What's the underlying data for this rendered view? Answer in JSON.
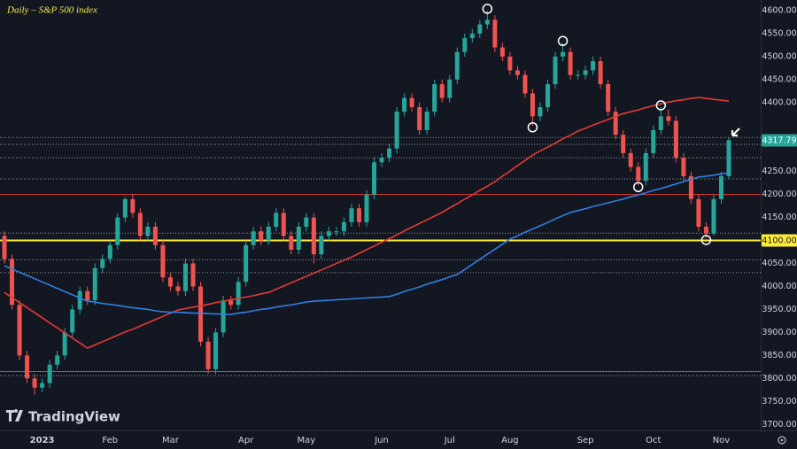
{
  "chart_data": {
    "type": "candlestick",
    "title": "Daily – S&P 500 index",
    "watermark": "TradingView",
    "categories": [
      null,
      null,
      null,
      null,
      null,
      "2023",
      null,
      null,
      null,
      null,
      null,
      null,
      null,
      null,
      "Feb",
      null,
      null,
      null,
      null,
      null,
      null,
      null,
      "Mar",
      null,
      null,
      null,
      null,
      null,
      null,
      null,
      null,
      null,
      "Apr",
      null,
      null,
      null,
      null,
      null,
      null,
      null,
      "May",
      null,
      null,
      null,
      null,
      null,
      null,
      null,
      null,
      null,
      "Jun",
      null,
      null,
      null,
      null,
      null,
      null,
      null,
      null,
      "Jul",
      null,
      null,
      null,
      null,
      null,
      null,
      null,
      "Aug",
      null,
      null,
      null,
      null,
      null,
      null,
      null,
      null,
      null,
      "Sep",
      null,
      null,
      null,
      null,
      null,
      null,
      null,
      null,
      "Oct",
      null,
      null,
      null,
      null,
      null,
      null,
      null,
      null,
      "Nov",
      null
    ],
    "open": [
      4110,
      4060,
      3960,
      3850,
      3800,
      3780,
      3790,
      3830,
      3850,
      3900,
      3950,
      3990,
      3970,
      4040,
      4060,
      4090,
      4150,
      4190,
      4160,
      4110,
      4130,
      4090,
      4020,
      4000,
      3990,
      4050,
      4000,
      3880,
      3820,
      3900,
      3970,
      3960,
      4010,
      4090,
      4120,
      4100,
      4130,
      4160,
      4110,
      4080,
      4130,
      4150,
      4070,
      4110,
      4120,
      4120,
      4140,
      4170,
      4140,
      4200,
      4270,
      4280,
      4300,
      4380,
      4410,
      4390,
      4340,
      4380,
      4440,
      4410,
      4450,
      4510,
      4540,
      4550,
      4570,
      4580,
      4520,
      4500,
      4470,
      4460,
      4420,
      4370,
      4390,
      4440,
      4500,
      4510,
      4460,
      4460,
      4470,
      4490,
      4440,
      4380,
      4330,
      4290,
      4260,
      4230,
      4290,
      4340,
      4370,
      4360,
      4280,
      4240,
      4190,
      4130,
      4115,
      4190,
      4240
    ],
    "high": [
      4120,
      4070,
      3970,
      3860,
      3810,
      3800,
      3840,
      3860,
      3910,
      3960,
      4000,
      4000,
      4050,
      4070,
      4100,
      4160,
      4195,
      4200,
      4170,
      4140,
      4140,
      4100,
      4030,
      4010,
      4060,
      4060,
      4010,
      3890,
      3910,
      3980,
      3980,
      4020,
      4100,
      4130,
      4130,
      4140,
      4170,
      4170,
      4120,
      4140,
      4160,
      4160,
      4120,
      4130,
      4130,
      4150,
      4180,
      4180,
      4210,
      4280,
      4290,
      4310,
      4390,
      4420,
      4420,
      4400,
      4390,
      4450,
      4450,
      4460,
      4520,
      4550,
      4560,
      4580,
      4600,
      4590,
      4530,
      4510,
      4480,
      4470,
      4430,
      4400,
      4450,
      4510,
      4530,
      4520,
      4470,
      4480,
      4500,
      4500,
      4450,
      4390,
      4340,
      4300,
      4270,
      4300,
      4350,
      4390,
      4385,
      4370,
      4290,
      4250,
      4200,
      4140,
      4200,
      4250,
      4325
    ],
    "low": [
      4050,
      3950,
      3840,
      3790,
      3765,
      3770,
      3780,
      3820,
      3840,
      3890,
      3940,
      3960,
      3960,
      4030,
      4050,
      4080,
      4140,
      4150,
      4100,
      4100,
      4080,
      4010,
      3990,
      3980,
      3980,
      3990,
      3870,
      3810,
      3810,
      3890,
      3950,
      3950,
      4000,
      4080,
      4090,
      4090,
      4120,
      4100,
      4070,
      4070,
      4120,
      4050,
      4060,
      4100,
      4110,
      4110,
      4130,
      4130,
      4130,
      4190,
      4260,
      4270,
      4290,
      4370,
      4380,
      4330,
      4330,
      4370,
      4400,
      4400,
      4440,
      4500,
      4530,
      4540,
      4560,
      4510,
      4490,
      4460,
      4450,
      4410,
      4350,
      4360,
      4380,
      4430,
      4490,
      4450,
      4450,
      4450,
      4460,
      4430,
      4370,
      4320,
      4280,
      4250,
      4220,
      4220,
      4280,
      4330,
      4350,
      4270,
      4230,
      4180,
      4120,
      4105,
      4110,
      4180,
      4235
    ],
    "close": [
      4060,
      3960,
      3850,
      3800,
      3780,
      3790,
      3830,
      3850,
      3900,
      3950,
      3990,
      3970,
      4040,
      4060,
      4090,
      4150,
      4190,
      4160,
      4110,
      4130,
      4090,
      4020,
      4000,
      3990,
      4050,
      4000,
      3880,
      3820,
      3900,
      3970,
      3960,
      4010,
      4090,
      4120,
      4100,
      4130,
      4160,
      4110,
      4080,
      4130,
      4150,
      4070,
      4110,
      4120,
      4120,
      4140,
      4170,
      4140,
      4200,
      4270,
      4280,
      4300,
      4380,
      4410,
      4390,
      4340,
      4380,
      4440,
      4410,
      4450,
      4510,
      4540,
      4550,
      4570,
      4580,
      4520,
      4500,
      4470,
      4460,
      4420,
      4370,
      4390,
      4440,
      4500,
      4510,
      4460,
      4460,
      4470,
      4490,
      4440,
      4380,
      4330,
      4290,
      4260,
      4230,
      4290,
      4340,
      4370,
      4360,
      4280,
      4240,
      4190,
      4130,
      4115,
      4190,
      4240,
      4318
    ],
    "up_color": "#26a69a",
    "down_color": "#ef5350",
    "moving_averages": [
      {
        "color": "#e53935",
        "values": [
          3987,
          3976,
          3965,
          3954,
          3943,
          3932,
          3921,
          3910,
          3899,
          3888,
          3877,
          3866,
          3873,
          3880,
          3887,
          3894,
          3901,
          3907,
          3914,
          3921,
          3928,
          3935,
          3942,
          3949,
          3952,
          3955,
          3958,
          3961,
          3965,
          3968,
          3971,
          3974,
          3977,
          3980,
          3984,
          3987,
          3994,
          4001,
          4008,
          4015,
          4022,
          4029,
          4036,
          4043,
          4050,
          4057,
          4064,
          4072,
          4080,
          4088,
          4096,
          4104,
          4112,
          4121,
          4129,
          4137,
          4145,
          4153,
          4161,
          4171,
          4180,
          4190,
          4199,
          4209,
          4218,
          4228,
          4240,
          4251,
          4263,
          4274,
          4286,
          4295,
          4303,
          4312,
          4321,
          4329,
          4338,
          4344,
          4351,
          4357,
          4363,
          4370,
          4376,
          4380,
          4384,
          4389,
          4393,
          4397,
          4401,
          4404,
          4406,
          4409,
          4411,
          4409,
          4407,
          4405,
          4403
        ]
      },
      {
        "color": "#2f7fe0",
        "values": [
          4045,
          4038,
          4031,
          4024,
          4017,
          4010,
          4003,
          3996,
          3989,
          3982,
          3975,
          3968,
          3966,
          3963,
          3961,
          3959,
          3956,
          3954,
          3952,
          3950,
          3947,
          3945,
          3944,
          3944,
          3943,
          3942,
          3942,
          3941,
          3940,
          3940,
          3939,
          3942,
          3944,
          3947,
          3950,
          3952,
          3955,
          3958,
          3960,
          3963,
          3966,
          3968,
          3969,
          3970,
          3971,
          3972,
          3973,
          3974,
          3975,
          3976,
          3977,
          3978,
          3983,
          3989,
          3994,
          3999,
          4005,
          4010,
          4015,
          4021,
          4026,
          4037,
          4048,
          4059,
          4070,
          4081,
          4092,
          4103,
          4110,
          4118,
          4125,
          4132,
          4139,
          4147,
          4154,
          4161,
          4165,
          4169,
          4174,
          4178,
          4182,
          4186,
          4190,
          4195,
          4199,
          4204,
          4209,
          4213,
          4218,
          4223,
          4228,
          4233,
          4238,
          4240,
          4242,
          4245,
          4247
        ]
      }
    ],
    "levels": [
      {
        "value": 4100,
        "label": "4100.00",
        "color": "#ffeb3b",
        "style": "solid"
      },
      {
        "value": 4200,
        "color": "#e53935",
        "style": "solid"
      },
      {
        "value": 3815,
        "color": "#e53935",
        "style": "solid"
      },
      {
        "value": 4324,
        "color": "#b2b5be",
        "style": "dotted"
      },
      {
        "value": 4309,
        "color": "#b2b5be",
        "style": "dotted"
      },
      {
        "value": 4280,
        "color": "#b2b5be",
        "style": "dotted"
      },
      {
        "value": 4234,
        "color": "#b2b5be",
        "style": "dotted"
      },
      {
        "value": 4116,
        "color": "#b2b5be",
        "style": "dotted"
      },
      {
        "value": 4058,
        "color": "#b2b5be",
        "style": "dotted"
      },
      {
        "value": 4030,
        "color": "#b2b5be",
        "style": "dotted"
      },
      {
        "value": 3806,
        "color": "#b2b5be",
        "style": "dotted"
      }
    ],
    "last_price": 4317.79,
    "ylim": [
      3687,
      4623
    ],
    "yticks": [
      {
        "value": 4600,
        "label": "4600.00"
      },
      {
        "value": 4550,
        "label": "4550.00"
      },
      {
        "value": 4500,
        "label": "4500.00"
      },
      {
        "value": 4450,
        "label": "4450.00"
      },
      {
        "value": 4400,
        "label": "4400.00"
      },
      {
        "value": 4250,
        "label": "4250.00"
      },
      {
        "value": 4200,
        "label": "4200.00"
      },
      {
        "value": 4150,
        "label": "4150.00"
      },
      {
        "value": 4050,
        "label": "4050.00"
      },
      {
        "value": 4000,
        "label": "4000.00"
      },
      {
        "value": 3950,
        "label": "3950.00"
      },
      {
        "value": 3900,
        "label": "3900.00"
      },
      {
        "value": 3850,
        "label": "3850.00"
      },
      {
        "value": 3800,
        "label": "3800.00"
      },
      {
        "value": 3750,
        "label": "3750.00"
      },
      {
        "value": 3700,
        "label": "3700.00"
      }
    ]
  }
}
